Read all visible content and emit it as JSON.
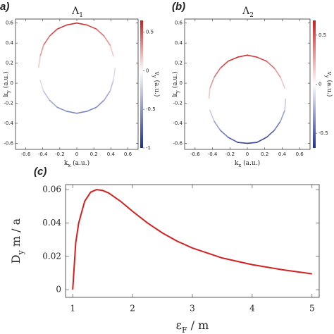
{
  "chart_data": [
    {
      "type": "line",
      "panel_label": "a)",
      "title": {
        "text": "Λ",
        "sub": "1"
      },
      "xlabel": {
        "text": "k",
        "sub": "x",
        "tail": " (a.u.)"
      },
      "ylabel": {
        "text": "k",
        "sub": "y",
        "tail": " (a.u.)"
      },
      "colorbar_label": {
        "text": "v",
        "sub": "y",
        "tail": " (a.u.)"
      },
      "x": [
        0.45,
        0.43,
        0.39,
        0.32,
        0.23,
        0.12,
        0,
        -0.12,
        -0.23,
        -0.32,
        -0.39,
        -0.43,
        -0.45,
        -0.43,
        -0.39,
        -0.32,
        -0.23,
        -0.12,
        0,
        0.12,
        0.23,
        0.32,
        0.39,
        0.43
      ],
      "series": [
        {
          "values": [
            0.15,
            0.27,
            0.38,
            0.47,
            0.54,
            0.58,
            0.6,
            0.58,
            0.54,
            0.47,
            0.38,
            0.27,
            0.15,
            0.03,
            -0.08,
            -0.17,
            -0.24,
            -0.28,
            -0.3,
            -0.28,
            -0.24,
            -0.17,
            -0.08,
            0.03
          ],
          "c": [
            0,
            0.16,
            0.3,
            0.42,
            0.52,
            0.58,
            0.6,
            0.58,
            0.52,
            0.42,
            0.3,
            0.16,
            0,
            -0.16,
            -0.3,
            -0.42,
            -0.52,
            -0.58,
            -0.6,
            -0.58,
            -0.52,
            -0.42,
            -0.3,
            -0.16
          ]
        }
      ],
      "xlim": [
        -0.72,
        0.72
      ],
      "ylim": [
        -0.66,
        0.64
      ],
      "xticks": [
        -0.6,
        -0.4,
        -0.2,
        0,
        0.2,
        0.4,
        0.6
      ],
      "yticks": [
        -0.6,
        -0.4,
        -0.2,
        0,
        0.2,
        0.4,
        0.6
      ],
      "clim": [
        -1,
        0.65
      ],
      "cticks": [
        -1,
        -0.5,
        0,
        0.5
      ],
      "colormap": [
        "#1f2f8f",
        "#ffffff",
        "#c81e1e"
      ]
    },
    {
      "type": "line",
      "panel_label": "(b)",
      "title": {
        "text": "Λ",
        "sub": "2"
      },
      "xlabel": {
        "text": "k",
        "sub": "x",
        "tail": " (a.u.)"
      },
      "ylabel": {
        "text": "k",
        "sub": "y",
        "tail": " (a.u.)"
      },
      "colorbar_label": {
        "text": "v",
        "sub": "y",
        "tail": " (a.u.)"
      },
      "x": [
        0.44,
        0.43,
        0.38,
        0.31,
        0.22,
        0.11,
        0,
        -0.11,
        -0.22,
        -0.31,
        -0.38,
        -0.43,
        -0.44,
        -0.43,
        -0.38,
        -0.31,
        -0.22,
        -0.11,
        0,
        0.11,
        0.22,
        0.31,
        0.38,
        0.43
      ],
      "series": [
        {
          "values": [
            -0.16,
            -0.05,
            0.06,
            0.15,
            0.22,
            0.26,
            0.28,
            0.26,
            0.22,
            0.15,
            0.06,
            -0.05,
            -0.16,
            -0.27,
            -0.38,
            -0.47,
            -0.54,
            -0.59,
            -0.6,
            -0.59,
            -0.54,
            -0.47,
            -0.38,
            -0.27
          ],
          "c": [
            0,
            0.16,
            0.3,
            0.42,
            0.52,
            0.58,
            0.6,
            0.58,
            0.52,
            0.42,
            0.3,
            0.16,
            0,
            -0.16,
            -0.3,
            -0.42,
            -0.52,
            -0.58,
            -0.6,
            -0.58,
            -0.52,
            -0.42,
            -0.3,
            -0.16
          ]
        }
      ],
      "xlim": [
        -0.72,
        0.72
      ],
      "ylim": [
        -0.66,
        0.64
      ],
      "xticks": [
        -0.6,
        -0.4,
        -0.2,
        0,
        0.2,
        0.4,
        0.6
      ],
      "yticks": [
        -0.6,
        -0.4,
        -0.2,
        0,
        0.2,
        0.4,
        0.6
      ],
      "clim": [
        -0.65,
        0.65
      ],
      "cticks": [
        -0.5,
        0,
        0.5
      ],
      "colormap": [
        "#1f2f8f",
        "#ffffff",
        "#c81e1e"
      ]
    },
    {
      "type": "line",
      "panel_label": "(c)",
      "xlabel": {
        "text": "ε",
        "sub": "F",
        "tail": " / m"
      },
      "ylabel": {
        "text": "D",
        "sub": "y",
        "tail": " m / a"
      },
      "x": [
        1,
        1.05,
        1.1,
        1.2,
        1.3,
        1.4,
        1.5,
        1.6,
        1.8,
        2,
        2.25,
        2.5,
        2.75,
        3,
        3.5,
        4,
        4.5,
        5
      ],
      "series": [
        {
          "color": "#d42020",
          "values": [
            0,
            0.028,
            0.04,
            0.053,
            0.0585,
            0.06,
            0.0595,
            0.058,
            0.053,
            0.047,
            0.04,
            0.034,
            0.029,
            0.025,
            0.019,
            0.015,
            0.012,
            0.0095
          ]
        }
      ],
      "xlim": [
        0.88,
        5.12
      ],
      "ylim": [
        -0.0046,
        0.063
      ],
      "xticks": [
        1,
        2,
        3,
        4,
        5
      ],
      "yticks": [
        0,
        0.02,
        0.04,
        0.06
      ]
    }
  ]
}
